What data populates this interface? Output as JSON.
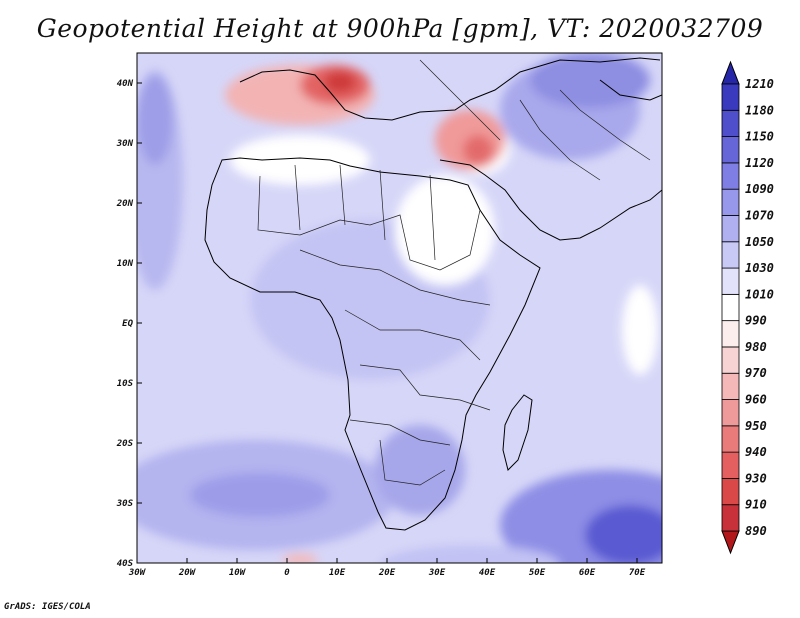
{
  "title": "Geopotential Height at 900hPa [gpm], VT: 2020032709",
  "credit": "GrADS: IGES/COLA",
  "map": {
    "lon_labels": [
      "30W",
      "20W",
      "10W",
      "0",
      "10E",
      "20E",
      "30E",
      "40E",
      "50E",
      "60E",
      "70E"
    ],
    "lat_labels": [
      "40N",
      "30N",
      "20N",
      "10N",
      "EQ",
      "10S",
      "20S",
      "30S",
      "40S"
    ],
    "lon_range": [
      -30,
      75
    ],
    "lat_range": [
      -40,
      45
    ]
  },
  "colorbar": {
    "levels": [
      "890",
      "910",
      "930",
      "940",
      "950",
      "960",
      "970",
      "980",
      "990",
      "1010",
      "1030",
      "1050",
      "1070",
      "1090",
      "1120",
      "1150",
      "1180",
      "1210"
    ],
    "colors": [
      "#b2181b",
      "#c8303a",
      "#db4848",
      "#e46060",
      "#ea7b7b",
      "#ef9a9a",
      "#f4b8b8",
      "#f8d3d3",
      "#fdeeee",
      "#ffffff",
      "#e2e2fb",
      "#c9c9f6",
      "#b0b0f1",
      "#9797eb",
      "#7e7ee4",
      "#6666d8",
      "#4f4fcc",
      "#3a3abf",
      "#2626a8"
    ]
  }
}
